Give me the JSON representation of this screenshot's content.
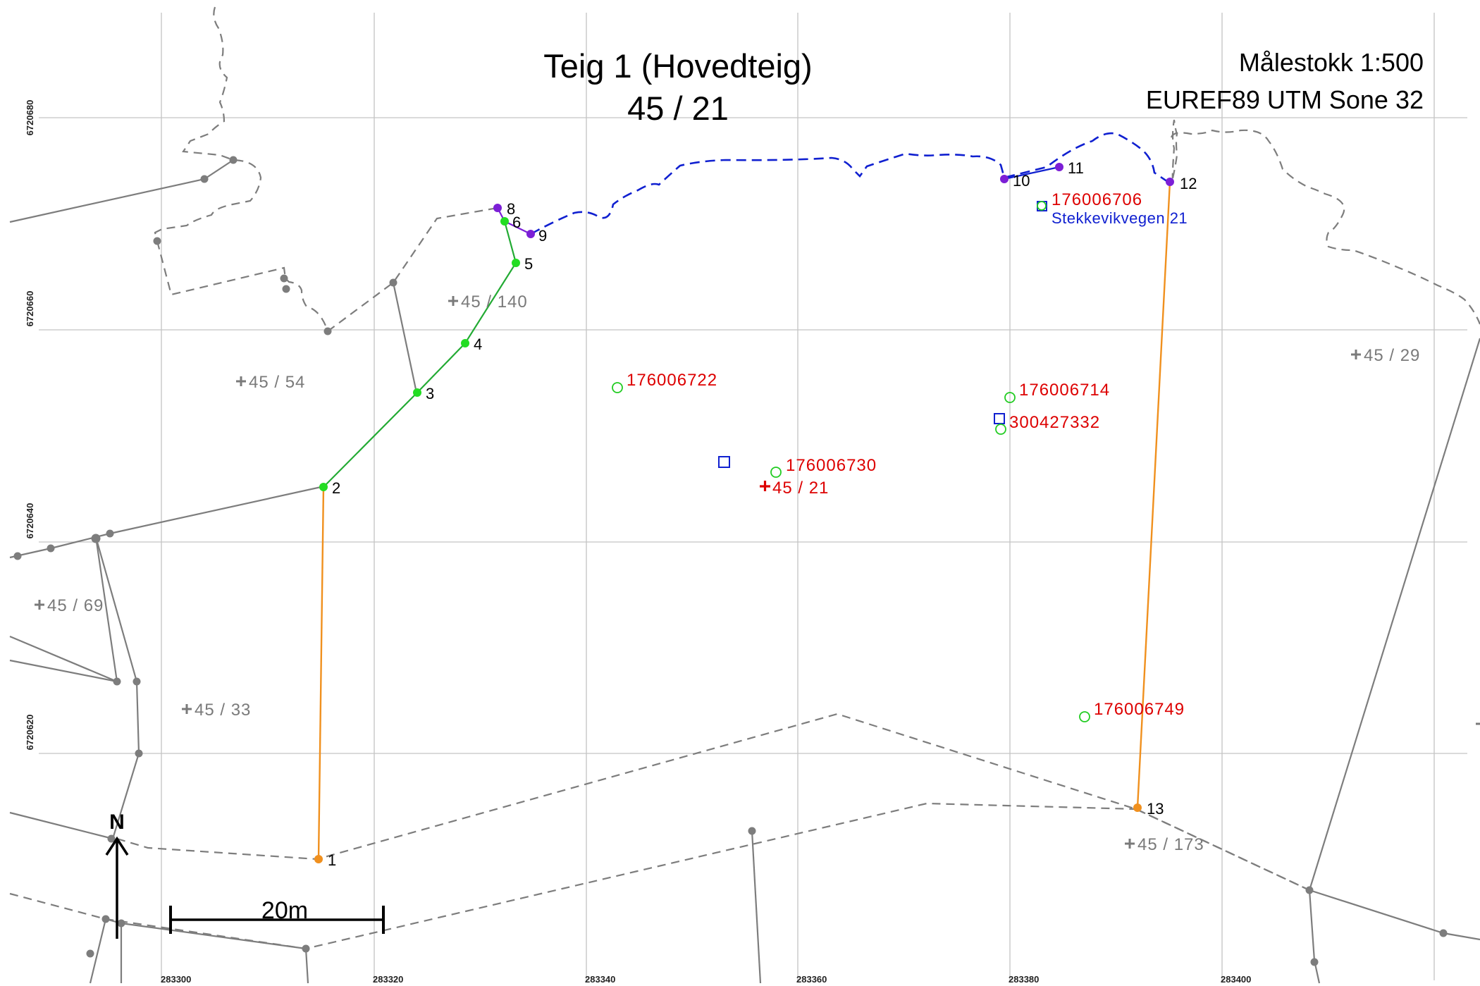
{
  "title": {
    "line1": "Teig 1 (Hovedteig)",
    "line2": "45 / 21"
  },
  "scale_text": "Målestokk 1:500",
  "crs_text": "EUREF89 UTM Sone 32",
  "north_label": "N",
  "scale_bar_label": "20m",
  "x_ticks": [
    "283300",
    "283320",
    "283340",
    "283360",
    "283380",
    "283400"
  ],
  "y_ticks": [
    "6720680",
    "6720660",
    "6720640",
    "6720620"
  ],
  "boundary_points": [
    "1",
    "2",
    "3",
    "4",
    "5",
    "6",
    "8",
    "9",
    "10",
    "11",
    "12",
    "13"
  ],
  "neighbor_parcels": [
    "45 / 140",
    "45 / 54",
    "45 / 69",
    "45 / 33",
    "45 / 29",
    "45 / 173"
  ],
  "main_parcel_label": "45 / 21",
  "address_points": [
    "176006706",
    "176006722",
    "176006714",
    "300427332",
    "176006730",
    "176006749"
  ],
  "road_label": "Stekkevikvegen 21",
  "colors": {
    "boundary_green": "#22cc22",
    "boundary_orange": "#f0901e",
    "boundary_purple": "#7c1fd6",
    "road_blue": "#1020d0",
    "address_red": "#dd0000",
    "neighbor_gray": "#7d7d7d"
  }
}
